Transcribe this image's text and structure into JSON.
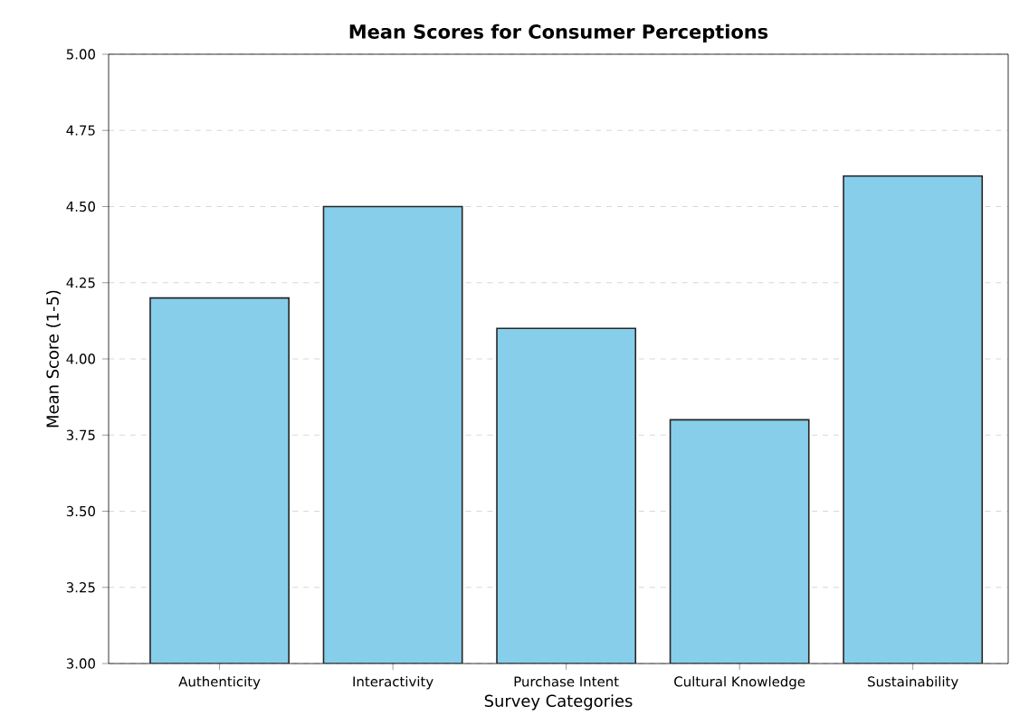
{
  "chart_data": {
    "type": "bar",
    "title": "Mean Scores for Consumer Perceptions",
    "xlabel": "Survey Categories",
    "ylabel": "Mean Score (1-5)",
    "categories": [
      "Authenticity",
      "Interactivity",
      "Purchase Intent",
      "Cultural Knowledge",
      "Sustainability"
    ],
    "values": [
      4.2,
      4.5,
      4.1,
      3.8,
      4.6
    ],
    "color": "#87ceeb",
    "ylim": [
      3,
      5
    ],
    "yticks": [
      {
        "value": 3,
        "label": "3.00"
      },
      {
        "value": 3.25,
        "label": "3.25"
      },
      {
        "value": 3.5,
        "label": "3.50"
      },
      {
        "value": 3.75,
        "label": "3.75"
      },
      {
        "value": 4,
        "label": "4.00"
      },
      {
        "value": 4.25,
        "label": "4.25"
      },
      {
        "value": 4.5,
        "label": "4.50"
      },
      {
        "value": 4.75,
        "label": "4.75"
      },
      {
        "value": 5,
        "label": "5.00"
      }
    ],
    "grid": "y"
  }
}
